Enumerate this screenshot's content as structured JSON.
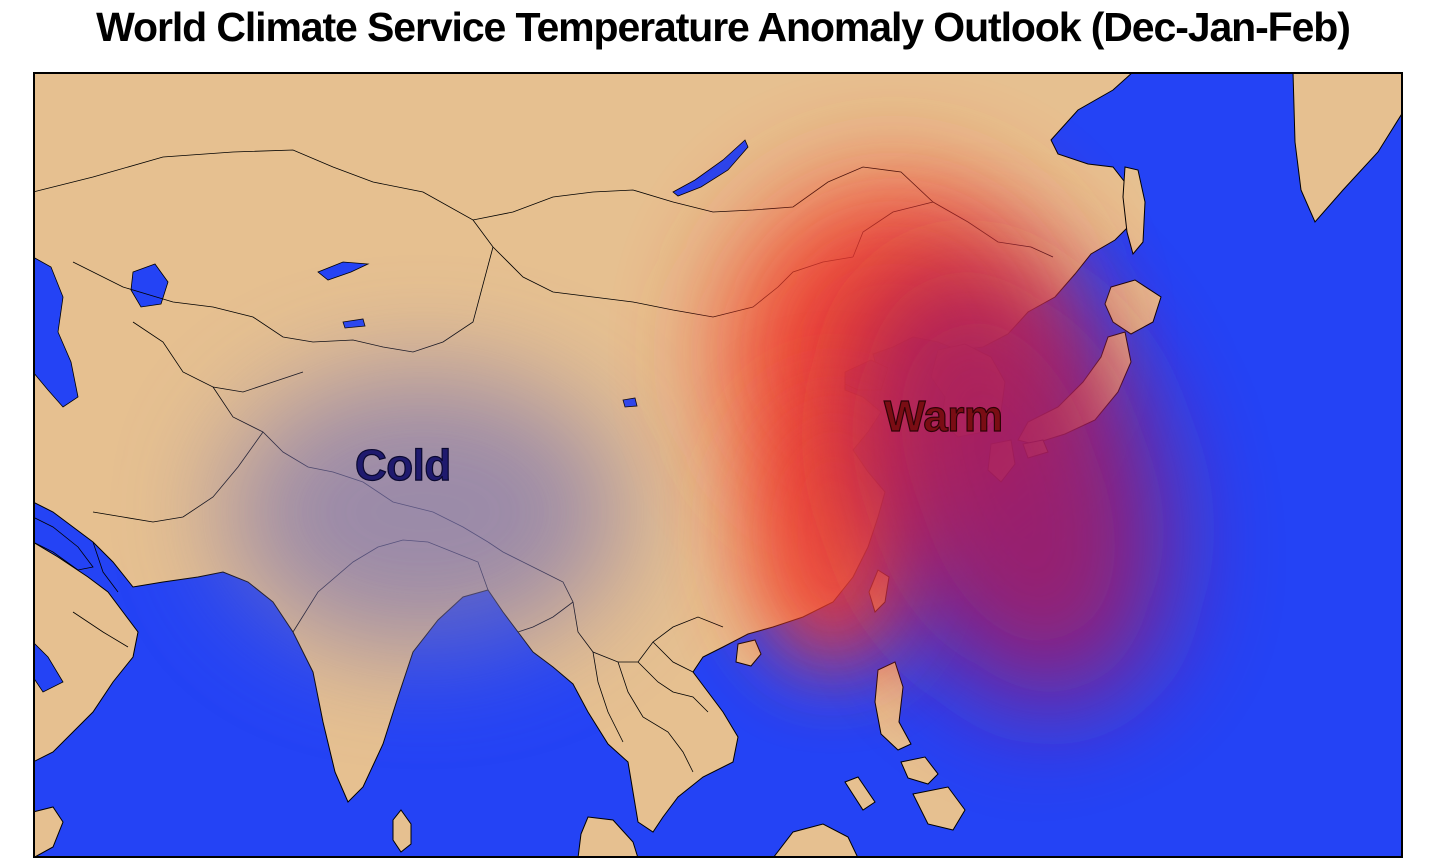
{
  "title": "World Climate Service Temperature Anomaly Outlook (Dec-Jan-Feb)",
  "labels": {
    "cold": "Cold",
    "warm": "Warm"
  },
  "colors": {
    "ocean": "#2443f5",
    "land": "#e6c090",
    "border": "#000000",
    "cold_anomaly": "#8c80b4",
    "warm_anomaly": "#f2412c",
    "warm_ocean_anomaly": "#a01a64"
  }
}
